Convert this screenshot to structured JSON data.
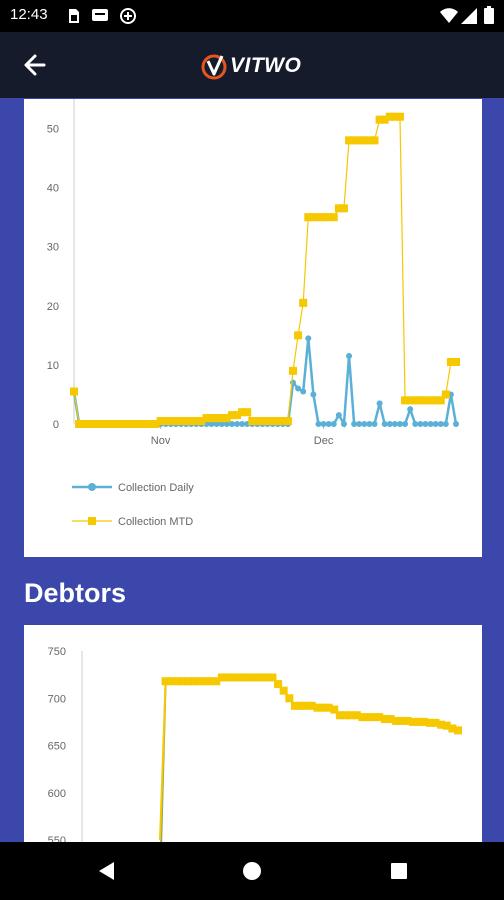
{
  "status_bar": {
    "time": "12:43"
  },
  "app_bar": {
    "logo_text": "VITWO"
  },
  "section": {
    "debtors_title": "Debtors"
  },
  "chart_data": [
    {
      "type": "line",
      "title": "",
      "xlabel": "",
      "ylabel": "",
      "ylim": [
        0,
        55
      ],
      "yticks": [
        0,
        10,
        20,
        30,
        40,
        50
      ],
      "xtick_labels": [
        "Nov",
        "Dec"
      ],
      "legend_position": "bottom-left",
      "series": [
        {
          "name": "Collection Daily",
          "color": "#5ab0d6",
          "x": [
            0,
            1,
            2,
            3,
            4,
            5,
            6,
            7,
            8,
            9,
            10,
            11,
            12,
            13,
            14,
            15,
            16,
            17,
            18,
            19,
            20,
            21,
            22,
            23,
            24,
            25,
            26,
            27,
            28,
            29,
            30,
            31,
            32,
            33,
            34,
            35,
            36,
            37,
            38,
            39,
            40,
            41,
            42,
            43,
            44,
            45,
            46,
            47,
            48,
            49,
            50,
            51,
            52,
            53,
            54,
            55,
            56,
            57,
            58,
            59,
            60,
            61,
            62,
            63,
            64,
            65,
            66,
            67,
            68,
            69,
            70,
            71,
            72,
            73,
            74,
            75
          ],
          "values": [
            5.5,
            0,
            0,
            0,
            0,
            0,
            0,
            0,
            0,
            0,
            0,
            0,
            0,
            0,
            0,
            0,
            0,
            0,
            0,
            0,
            0,
            0,
            0,
            0,
            0,
            0,
            0,
            0,
            0,
            0,
            0,
            0,
            0,
            0,
            0,
            0,
            0,
            0,
            0,
            0,
            0,
            0,
            0,
            7,
            6,
            5.5,
            14.5,
            5,
            0,
            0,
            0,
            0,
            1.5,
            0,
            11.5,
            0,
            0,
            0,
            0,
            0,
            3.5,
            0,
            0,
            0,
            0,
            0,
            2.5,
            0,
            0,
            0,
            0,
            0,
            0,
            0,
            5,
            0
          ]
        },
        {
          "name": "Collection MTD",
          "color": "#f5c800",
          "x": [
            0,
            1,
            2,
            3,
            4,
            5,
            6,
            7,
            8,
            9,
            10,
            11,
            12,
            13,
            14,
            15,
            16,
            17,
            18,
            19,
            20,
            21,
            22,
            23,
            24,
            25,
            26,
            27,
            28,
            29,
            30,
            31,
            32,
            33,
            34,
            35,
            36,
            37,
            38,
            39,
            40,
            41,
            42,
            43,
            44,
            45,
            46,
            47,
            48,
            49,
            50,
            51,
            52,
            53,
            54,
            55,
            56,
            57,
            58,
            59,
            60,
            61,
            62,
            63,
            64,
            65,
            66,
            67,
            68,
            69,
            70,
            71,
            72,
            73,
            74,
            75
          ],
          "values": [
            5.5,
            0,
            0,
            0,
            0,
            0,
            0,
            0,
            0,
            0,
            0,
            0,
            0,
            0,
            0,
            0,
            0,
            0.5,
            0.5,
            0.5,
            0.5,
            0.5,
            0.5,
            0.5,
            0.5,
            0.5,
            1,
            1,
            1,
            1,
            1,
            1.5,
            1.5,
            2,
            2,
            0.5,
            0.5,
            0.5,
            0.5,
            0.5,
            0.5,
            0.5,
            0.5,
            9,
            15,
            20.5,
            35,
            35,
            35,
            35,
            35,
            35,
            36.5,
            36.5,
            48,
            48,
            48,
            48,
            48,
            48,
            51.5,
            51.5,
            52,
            52,
            52,
            4,
            4,
            4,
            4,
            4,
            4,
            4,
            4,
            5,
            10.5,
            10.5
          ]
        }
      ]
    },
    {
      "type": "line",
      "title": "",
      "xlabel": "",
      "ylabel": "",
      "ylim": [
        550,
        750
      ],
      "yticks": [
        550,
        600,
        650,
        700,
        750
      ],
      "series": [
        {
          "name": "",
          "color": "#f5c800",
          "x": [
            0,
            1,
            2,
            3,
            4,
            5,
            6,
            7,
            8,
            9,
            10,
            11,
            12,
            13,
            14,
            15,
            16,
            17,
            18,
            19,
            20,
            21,
            22,
            23,
            24,
            25,
            26,
            27,
            28,
            29,
            30,
            31,
            32,
            33,
            34,
            35,
            36,
            37,
            38,
            39,
            40,
            41,
            42,
            43,
            44,
            45,
            46,
            47,
            48,
            49,
            50,
            51,
            52,
            53
          ],
          "values": [
            550,
            718,
            718,
            718,
            718,
            718,
            718,
            718,
            718,
            718,
            718,
            722,
            722,
            722,
            722,
            722,
            722,
            722,
            722,
            722,
            722,
            715,
            708,
            700,
            692,
            692,
            692,
            692,
            690,
            690,
            690,
            688,
            682,
            682,
            682,
            682,
            680,
            680,
            680,
            680,
            678,
            678,
            676,
            676,
            676,
            675,
            675,
            675,
            674,
            674,
            672,
            671,
            668,
            666
          ]
        }
      ]
    }
  ]
}
